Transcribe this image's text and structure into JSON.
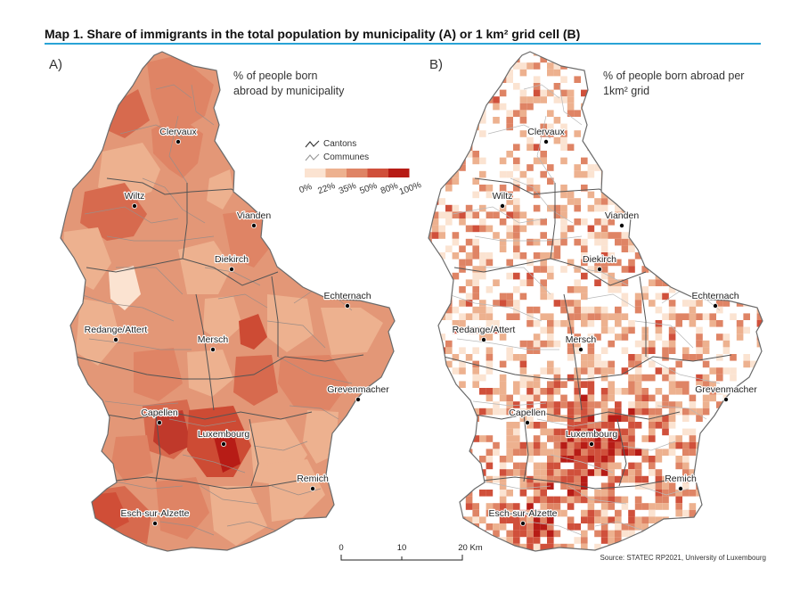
{
  "title": "Map 1. Share of immigrants in the total population by municipality (A) or 1 km² grid cell (B)",
  "panel_a": {
    "letter": "A)",
    "legend_title_line1": "% of people born",
    "legend_title_line2": "abroad by municipality"
  },
  "panel_b": {
    "letter": "B)",
    "legend_title_line1": "% of people born abroad per",
    "legend_title_line2": "1km² grid"
  },
  "legend": {
    "cantons_label": "Cantons",
    "communes_label": "Communes",
    "breaks": [
      "0%",
      "22%",
      "35%",
      "50%",
      "80%",
      "100%"
    ],
    "colors": [
      "#fbe3d1",
      "#edb18f",
      "#df8465",
      "#d0503b",
      "#b71c16"
    ]
  },
  "towns": [
    "Clervaux",
    "Wiltz",
    "Vianden",
    "Diekirch",
    "Echternach",
    "Redange/Attert",
    "Mersch",
    "Grevenmacher",
    "Capellen",
    "Luxembourg",
    "Remich",
    "Esch-sur-Alzette"
  ],
  "scale_bar": {
    "ticks": [
      "0",
      "10",
      "20 Km"
    ]
  },
  "source": "Source:  STATEC RP2021, University of Luxembourg"
}
